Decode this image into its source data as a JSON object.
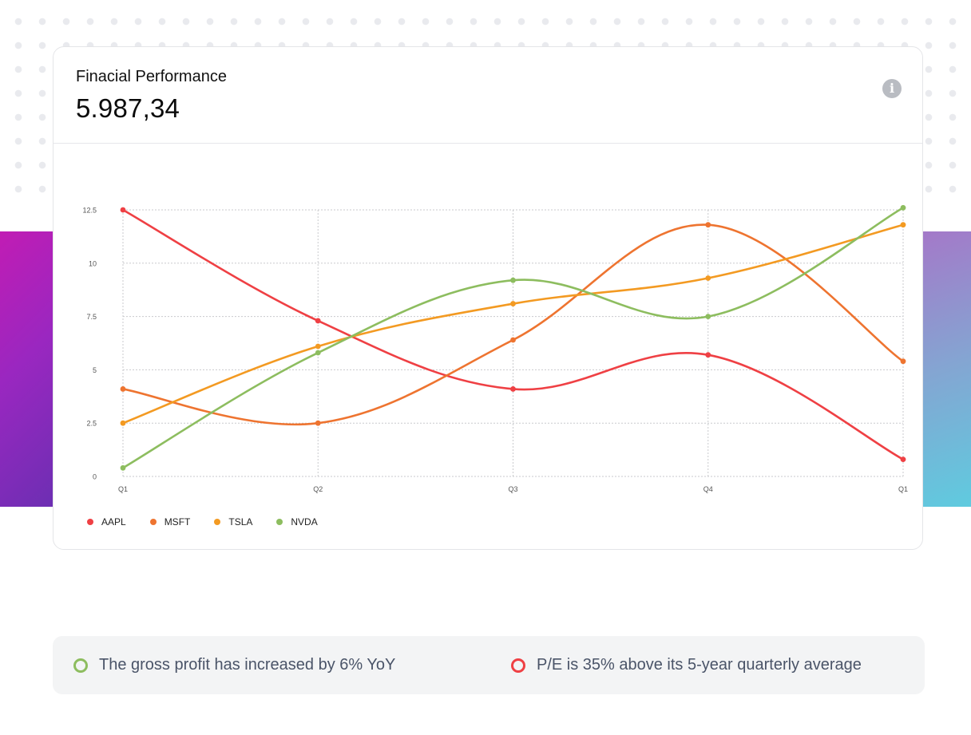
{
  "card": {
    "title": "Finacial Performance",
    "value": "5.987,34",
    "info_icon": "info-circle-icon"
  },
  "colors": {
    "AAPL": "#ef4044",
    "MSFT": "#ee7430",
    "TSLA": "#f39a22",
    "NVDA": "#8dbd5f",
    "grid": "#c9cacd",
    "left_band_start": "#c11cb4",
    "right_band_end": "#5fcbdf"
  },
  "chart_data": {
    "type": "line",
    "categories": [
      "Q1",
      "Q2",
      "Q3",
      "Q4",
      "Q1"
    ],
    "y_ticks": [
      "0",
      "2.5",
      "5",
      "7.5",
      "10",
      "12.5"
    ],
    "ylim": [
      0,
      12.5
    ],
    "grid": true,
    "legend_position": "bottom-left",
    "series": [
      {
        "name": "AAPL",
        "values": [
          12.5,
          7.3,
          4.1,
          5.7,
          0.8
        ]
      },
      {
        "name": "MSFT",
        "values": [
          4.1,
          2.5,
          6.4,
          11.8,
          5.4
        ]
      },
      {
        "name": "TSLA",
        "values": [
          2.5,
          6.1,
          8.1,
          9.3,
          11.8
        ]
      },
      {
        "name": "NVDA",
        "values": [
          0.4,
          5.8,
          9.2,
          7.5,
          12.6
        ]
      }
    ]
  },
  "notes": [
    {
      "text": "The gross profit has increased by 6% YoY",
      "status": "positive",
      "color": "#8dbd5f"
    },
    {
      "text": "P/E is 35% above its 5-year quarterly average",
      "status": "negative",
      "color": "#ef4044"
    }
  ]
}
